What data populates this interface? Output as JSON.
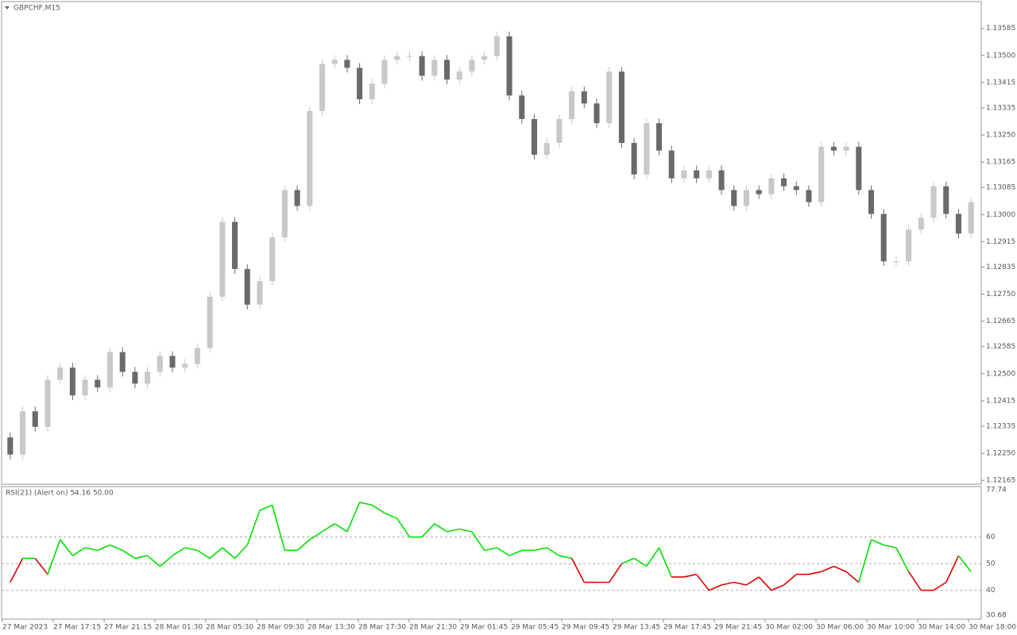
{
  "chart_data": [
    {
      "type": "candlestick",
      "title": "GBPCHF,M15",
      "up_color": "#c8c8c8",
      "down_color": "#6a6a6a",
      "ylim": [
        1.12158,
        1.13664
      ],
      "yticks": [
        1.13585,
        {
          "value": 1.135,
          "label": "1.13500"
        },
        1.13415,
        1.13335,
        {
          "value": 1.1325,
          "label": "1.13250"
        },
        1.13165,
        1.13085,
        {
          "value": 1.13,
          "label": "1.13000"
        },
        1.12915,
        1.12835,
        {
          "value": 1.1275,
          "label": "1.12750"
        },
        1.12665,
        1.12585,
        {
          "value": 1.125,
          "label": "1.12500"
        },
        1.12415,
        1.12335,
        {
          "value": 1.1225,
          "label": "1.12250"
        },
        1.12165
      ],
      "candles": [
        [
          1.123,
          1.12315,
          1.12231,
          1.12246
        ],
        [
          1.12246,
          1.12397,
          1.12231,
          1.12382
        ],
        [
          1.12382,
          1.12397,
          1.12318,
          1.12333
        ],
        [
          1.12333,
          1.12496,
          1.12318,
          1.12481
        ],
        [
          1.12481,
          1.12534,
          1.12466,
          1.12519
        ],
        [
          1.12519,
          1.12534,
          1.12417,
          1.12432
        ],
        [
          1.12432,
          1.12496,
          1.12417,
          1.12481
        ],
        [
          1.12481,
          1.12496,
          1.12442,
          1.12457
        ],
        [
          1.12457,
          1.12583,
          1.12442,
          1.12568
        ],
        [
          1.12568,
          1.12583,
          1.12491,
          1.12506
        ],
        [
          1.12506,
          1.12521,
          1.12454,
          1.12469
        ],
        [
          1.12469,
          1.12521,
          1.12454,
          1.12506
        ],
        [
          1.12506,
          1.12571,
          1.12491,
          1.12556
        ],
        [
          1.12556,
          1.12571,
          1.12504,
          1.12519
        ],
        [
          1.12519,
          1.12546,
          1.12504,
          1.12531
        ],
        [
          1.12531,
          1.12596,
          1.12516,
          1.12581
        ],
        [
          1.12581,
          1.12757,
          1.12566,
          1.12742
        ],
        [
          1.12742,
          1.12992,
          1.12727,
          1.12977
        ],
        [
          1.12977,
          1.12992,
          1.12814,
          1.12829
        ],
        [
          1.12829,
          1.12844,
          1.12702,
          1.12717
        ],
        [
          1.12717,
          1.12806,
          1.12702,
          1.12791
        ],
        [
          1.12791,
          1.12943,
          1.12776,
          1.12928
        ],
        [
          1.12928,
          1.13092,
          1.12913,
          1.13077
        ],
        [
          1.13077,
          1.13092,
          1.13012,
          1.13027
        ],
        [
          1.13027,
          1.1334,
          1.13012,
          1.13325
        ],
        [
          1.13325,
          1.13488,
          1.1331,
          1.13473
        ],
        [
          1.13473,
          1.13501,
          1.13458,
          1.13486
        ],
        [
          1.13486,
          1.13501,
          1.13446,
          1.13461
        ],
        [
          1.13461,
          1.13476,
          1.13347,
          1.13362
        ],
        [
          1.13362,
          1.13426,
          1.13347,
          1.13411
        ],
        [
          1.13411,
          1.13501,
          1.13396,
          1.13486
        ],
        [
          1.13486,
          1.13513,
          1.13471,
          1.13498
        ],
        [
          1.13498,
          1.13513,
          1.13483,
          1.13498
        ],
        [
          1.13498,
          1.13513,
          1.13421,
          1.13436
        ],
        [
          1.13436,
          1.13501,
          1.13421,
          1.13486
        ],
        [
          1.13486,
          1.13501,
          1.13409,
          1.13424
        ],
        [
          1.13424,
          1.13464,
          1.13409,
          1.13449
        ],
        [
          1.13449,
          1.13501,
          1.13434,
          1.13486
        ],
        [
          1.13486,
          1.13513,
          1.13471,
          1.13498
        ],
        [
          1.13498,
          1.13575,
          1.13483,
          1.1356
        ],
        [
          1.1356,
          1.13575,
          1.13359,
          1.13374
        ],
        [
          1.13374,
          1.13389,
          1.13285,
          1.133
        ],
        [
          1.133,
          1.13315,
          1.13173,
          1.13188
        ],
        [
          1.13188,
          1.1324,
          1.13173,
          1.13225
        ],
        [
          1.13225,
          1.13315,
          1.1321,
          1.133
        ],
        [
          1.133,
          1.13402,
          1.13285,
          1.13387
        ],
        [
          1.13387,
          1.13402,
          1.13334,
          1.13349
        ],
        [
          1.13349,
          1.13364,
          1.13272,
          1.13287
        ],
        [
          1.13287,
          1.13464,
          1.13272,
          1.13449
        ],
        [
          1.13449,
          1.13464,
          1.1321,
          1.13225
        ],
        [
          1.13225,
          1.1324,
          1.13111,
          1.13126
        ],
        [
          1.13126,
          1.13302,
          1.13111,
          1.13287
        ],
        [
          1.13287,
          1.13302,
          1.13186,
          1.13201
        ],
        [
          1.13201,
          1.13216,
          1.13099,
          1.13114
        ],
        [
          1.13114,
          1.13154,
          1.13099,
          1.13139
        ],
        [
          1.13139,
          1.13154,
          1.13099,
          1.13114
        ],
        [
          1.13114,
          1.13154,
          1.13099,
          1.13139
        ],
        [
          1.13139,
          1.13154,
          1.13062,
          1.13077
        ],
        [
          1.13077,
          1.13092,
          1.13012,
          1.13027
        ],
        [
          1.13027,
          1.13092,
          1.13012,
          1.13077
        ],
        [
          1.13077,
          1.13092,
          1.13049,
          1.13064
        ],
        [
          1.13064,
          1.13129,
          1.13049,
          1.13114
        ],
        [
          1.13114,
          1.13129,
          1.13074,
          1.13089
        ],
        [
          1.13089,
          1.13104,
          1.13062,
          1.13077
        ],
        [
          1.13077,
          1.13092,
          1.13024,
          1.13039
        ],
        [
          1.13039,
          1.13228,
          1.13024,
          1.13213
        ],
        [
          1.13213,
          1.13228,
          1.13186,
          1.13201
        ],
        [
          1.13201,
          1.13228,
          1.13186,
          1.13213
        ],
        [
          1.13213,
          1.13228,
          1.13062,
          1.13077
        ],
        [
          1.13077,
          1.13092,
          1.12987,
          1.13002
        ],
        [
          1.13002,
          1.13017,
          1.12838,
          1.12853
        ],
        [
          1.12853,
          1.12868,
          1.12838,
          1.12853
        ],
        [
          1.12853,
          1.12968,
          1.12838,
          1.12953
        ],
        [
          1.12953,
          1.13005,
          1.12938,
          1.1299
        ],
        [
          1.1299,
          1.13104,
          1.12975,
          1.13089
        ],
        [
          1.13089,
          1.13104,
          1.12987,
          1.13002
        ],
        [
          1.13002,
          1.13017,
          1.12925,
          1.1294
        ],
        [
          1.1294,
          1.13054,
          1.12925,
          1.13039
        ]
      ]
    },
    {
      "type": "line",
      "title": "RSI(21) (Alert on) 54.16 50.00",
      "above_color": "#00e000",
      "below_color": "#e00000",
      "ylim": [
        30.68,
        77.74
      ],
      "yticks": [
        77.74,
        60,
        50,
        40,
        30.68
      ],
      "values": [
        43,
        52,
        52,
        46,
        59,
        53,
        56,
        55,
        57,
        55,
        52,
        53,
        49,
        53,
        56,
        55,
        52,
        56,
        52,
        57,
        70,
        72,
        55,
        55,
        59,
        62,
        65,
        62,
        73,
        72,
        69,
        67,
        60,
        60,
        65,
        62,
        63,
        62,
        55,
        56,
        53,
        55,
        55,
        56,
        53,
        52,
        43,
        43,
        43,
        50,
        52,
        49,
        56,
        45,
        45,
        46,
        40,
        42,
        43,
        42,
        45,
        40,
        42,
        46,
        46,
        47,
        49,
        47,
        43,
        59,
        57,
        56,
        47,
        40,
        40,
        43,
        53,
        47
      ],
      "x_labels": [
        "27 Mar 2023",
        "27 Mar 17:15",
        "27 Mar 21:15",
        "28 Mar 01:30",
        "28 Mar 05:30",
        "28 Mar 09:30",
        "28 Mar 13:30",
        "28 Mar 17:30",
        "28 Mar 21:30",
        "29 Mar 01:45",
        "29 Mar 05:45",
        "29 Mar 09:45",
        "29 Mar 13:45",
        "29 Mar 17:45",
        "29 Mar 21:45",
        "30 Mar 02:00",
        "30 Mar 06:00",
        "30 Mar 10:00",
        "30 Mar 14:00",
        "30 Mar 18:00"
      ]
    }
  ]
}
